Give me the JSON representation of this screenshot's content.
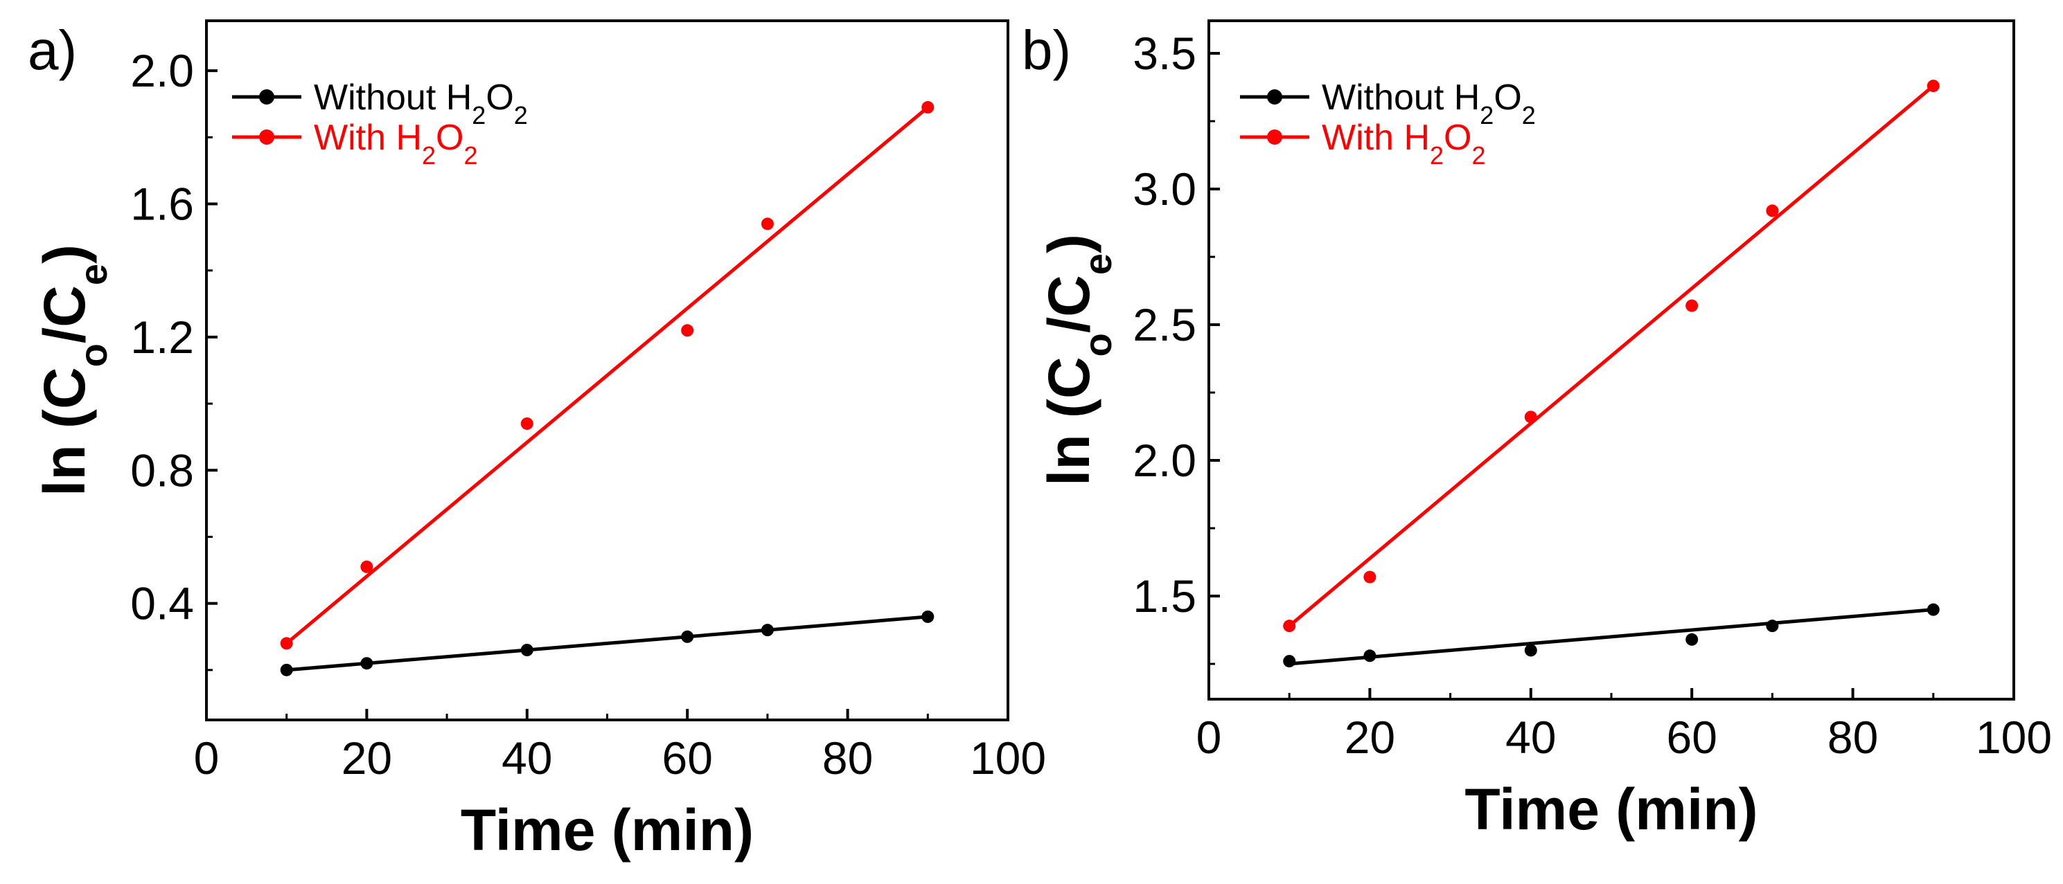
{
  "chart_data": [
    {
      "type": "scatter",
      "panel_label": "a)",
      "xlabel": "Time (min)",
      "ylabel": {
        "main": "ln (C",
        "sub1": "o",
        "mid": "/C",
        "sub2": "e",
        "end": ")"
      },
      "xlim": [
        0,
        100
      ],
      "ylim": [
        0.05,
        2.15
      ],
      "x_ticks": [
        0,
        20,
        40,
        60,
        80,
        100
      ],
      "x_tick_labels": [
        "0",
        "20",
        "40",
        "60",
        "80",
        "100"
      ],
      "y_ticks": [
        0.4,
        0.8,
        1.2,
        1.6,
        2.0
      ],
      "y_tick_labels": [
        "0.4",
        "0.8",
        "1.2",
        "1.6",
        "2.0"
      ],
      "legend_position": "top-left",
      "series": [
        {
          "name": "Without H2O2",
          "legend": {
            "prefix": "Without H",
            "sub1": "2",
            "mid": "O",
            "sub2": "2"
          },
          "color": "#000000",
          "x": [
            10,
            20,
            40,
            60,
            70,
            90
          ],
          "y": [
            0.2,
            0.22,
            0.26,
            0.3,
            0.32,
            0.36
          ],
          "fit": [
            [
              10,
              0.2
            ],
            [
              90,
              0.36
            ]
          ]
        },
        {
          "name": "With H2O2",
          "legend": {
            "prefix": "With H",
            "sub1": "2",
            "mid": "O",
            "sub2": "2"
          },
          "color": "#ff0000",
          "x": [
            10,
            20,
            40,
            60,
            70,
            90
          ],
          "y": [
            0.28,
            0.51,
            0.94,
            1.22,
            1.54,
            1.89
          ],
          "fit": [
            [
              10,
              0.28
            ],
            [
              90,
              1.89
            ]
          ]
        }
      ]
    },
    {
      "type": "scatter",
      "panel_label": "b)",
      "xlabel": "Time (min)",
      "ylabel": {
        "main": "ln (C",
        "sub1": "o",
        "mid": "/C",
        "sub2": "e",
        "end": ")"
      },
      "xlim": [
        0,
        100
      ],
      "ylim": [
        1.12,
        3.62
      ],
      "x_ticks": [
        0,
        20,
        40,
        60,
        80,
        100
      ],
      "x_tick_labels": [
        "0",
        "20",
        "40",
        "60",
        "80",
        "100"
      ],
      "y_ticks": [
        1.5,
        2.0,
        2.5,
        3.0,
        3.5
      ],
      "y_tick_labels": [
        "1.5",
        "2.0",
        "2.5",
        "3.0",
        "3.5"
      ],
      "legend_position": "top-left",
      "series": [
        {
          "name": "Without H2O2",
          "legend": {
            "prefix": "Without H",
            "sub1": "2",
            "mid": "O",
            "sub2": "2"
          },
          "color": "#000000",
          "x": [
            10,
            20,
            40,
            60,
            70,
            90
          ],
          "y": [
            1.26,
            1.28,
            1.3,
            1.34,
            1.39,
            1.45
          ],
          "fit": [
            [
              10,
              1.25
            ],
            [
              90,
              1.45
            ]
          ]
        },
        {
          "name": "With H2O2",
          "legend": {
            "prefix": "With H",
            "sub1": "2",
            "mid": "O",
            "sub2": "2"
          },
          "color": "#ff0000",
          "x": [
            10,
            20,
            40,
            60,
            70,
            90
          ],
          "y": [
            1.39,
            1.57,
            2.16,
            2.57,
            2.92,
            3.38
          ],
          "fit": [
            [
              10,
              1.39
            ],
            [
              90,
              3.38
            ]
          ]
        }
      ]
    }
  ]
}
